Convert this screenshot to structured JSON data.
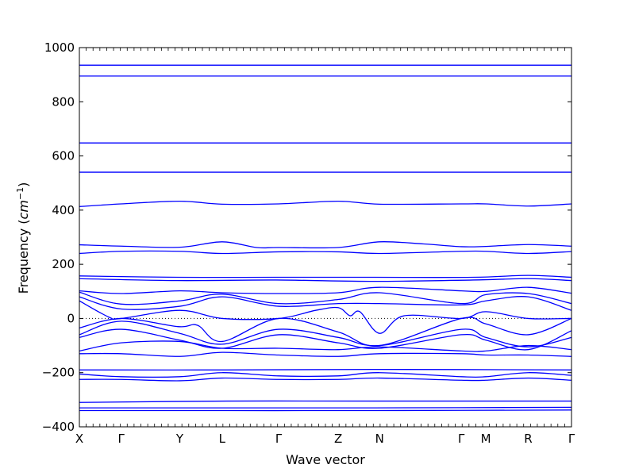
{
  "chart_data": {
    "type": "line",
    "xlabel": "Wave vector",
    "ylabel": "Frequency ",
    "ylabel_unit_base": "cm",
    "ylabel_unit_exp": "−1",
    "ylim": [
      -400,
      1000
    ],
    "yticks": [
      -400,
      -200,
      0,
      200,
      400,
      600,
      800,
      1000
    ],
    "ytick_labels": [
      "−400",
      "−200",
      "0",
      "200",
      "400",
      "600",
      "800",
      "1000"
    ],
    "xlim": [
      0,
      1
    ],
    "path_points": [
      {
        "label": "X",
        "x": 0.0
      },
      {
        "label": "Γ",
        "x": 0.085
      },
      {
        "label": "Y",
        "x": 0.204
      },
      {
        "label": "L",
        "x": 0.29
      },
      {
        "label": "Γ",
        "x": 0.405
      },
      {
        "label": "Z",
        "x": 0.526
      },
      {
        "label": "N",
        "x": 0.61
      },
      {
        "label": "Γ",
        "x": 0.776
      },
      {
        "label": "M",
        "x": 0.826
      },
      {
        "label": "R",
        "x": 0.912
      },
      {
        "label": "Γ",
        "x": 1.0
      }
    ],
    "zero_line": {
      "y": 0,
      "style": "dotted"
    },
    "line_color": "#0000ff",
    "series": [
      {
        "x": [
          0,
          0.5,
          1
        ],
        "y": [
          935,
          935,
          935
        ]
      },
      {
        "x": [
          0,
          0.5,
          1
        ],
        "y": [
          895,
          895,
          895
        ]
      },
      {
        "x": [
          0,
          0.3,
          0.6,
          1
        ],
        "y": [
          648,
          648,
          648,
          648
        ]
      },
      {
        "x": [
          0,
          0.3,
          0.6,
          1
        ],
        "y": [
          540,
          540,
          540,
          540
        ]
      },
      {
        "x": [
          0,
          0.085,
          0.204,
          0.29,
          0.405,
          0.526,
          0.61,
          0.776,
          0.826,
          0.912,
          1.0
        ],
        "y": [
          413,
          423,
          433,
          422,
          423,
          433,
          422,
          423,
          423,
          415,
          423
        ]
      },
      {
        "x": [
          0,
          0.085,
          0.204,
          0.29,
          0.36,
          0.405,
          0.526,
          0.61,
          0.7,
          0.776,
          0.826,
          0.912,
          1.0
        ],
        "y": [
          272,
          267,
          263,
          283,
          262,
          262,
          262,
          283,
          275,
          265,
          266,
          273,
          267
        ]
      },
      {
        "x": [
          0,
          0.085,
          0.204,
          0.29,
          0.405,
          0.526,
          0.61,
          0.776,
          0.826,
          0.912,
          1.0
        ],
        "y": [
          240,
          248,
          248,
          240,
          246,
          246,
          240,
          248,
          248,
          240,
          247
        ]
      },
      {
        "x": [
          0,
          0.2,
          0.4,
          0.6,
          0.8,
          0.912,
          1.0
        ],
        "y": [
          157,
          152,
          152,
          152,
          152,
          159,
          152
        ]
      },
      {
        "x": [
          0,
          0.2,
          0.4,
          0.6,
          0.8,
          0.912,
          1.0
        ],
        "y": [
          147,
          140,
          142,
          137,
          142,
          147,
          140
        ]
      },
      {
        "x": [
          0,
          0.085,
          0.204,
          0.29,
          0.405,
          0.526,
          0.61,
          0.776,
          0.826,
          0.912,
          1.0
        ],
        "y": [
          102,
          92,
          102,
          95,
          92,
          95,
          115,
          102,
          100,
          115,
          93
        ]
      },
      {
        "x": [
          0,
          0.085,
          0.204,
          0.29,
          0.405,
          0.526,
          0.61,
          0.776,
          0.826,
          0.912,
          1.0
        ],
        "y": [
          97,
          53,
          65,
          90,
          55,
          70,
          95,
          55,
          88,
          92,
          55
        ]
      },
      {
        "x": [
          0,
          0.085,
          0.204,
          0.29,
          0.405,
          0.526,
          0.61,
          0.776,
          0.826,
          0.912,
          1.0
        ],
        "y": [
          80,
          35,
          45,
          80,
          45,
          55,
          55,
          50,
          65,
          80,
          30
        ]
      },
      {
        "x": [
          0,
          0.06,
          0.085,
          0.204,
          0.29,
          0.405,
          0.48,
          0.526,
          0.55,
          0.57,
          0.61,
          0.66,
          0.776,
          0.826,
          0.912,
          1.0
        ],
        "y": [
          65,
          5,
          0,
          30,
          0,
          0,
          30,
          40,
          10,
          25,
          -55,
          10,
          0,
          25,
          0,
          0
        ]
      },
      {
        "x": [
          0,
          0.085,
          0.2,
          0.24,
          0.29,
          0.405,
          0.526,
          0.61,
          0.776,
          0.826,
          0.912,
          1.0
        ],
        "y": [
          -35,
          0,
          -30,
          -25,
          -85,
          0,
          -50,
          -100,
          0,
          -20,
          -60,
          0
        ]
      },
      {
        "x": [
          0,
          0.085,
          0.204,
          0.29,
          0.405,
          0.526,
          0.61,
          0.776,
          0.826,
          0.912,
          1.0
        ],
        "y": [
          -60,
          -10,
          -55,
          -95,
          -40,
          -70,
          -100,
          -40,
          -70,
          -105,
          -70
        ]
      },
      {
        "x": [
          0,
          0.085,
          0.204,
          0.29,
          0.405,
          0.526,
          0.61,
          0.776,
          0.826,
          0.912,
          1.0
        ],
        "y": [
          -70,
          -40,
          -80,
          -110,
          -60,
          -90,
          -110,
          -60,
          -80,
          -115,
          -45
        ]
      },
      {
        "x": [
          0,
          0.085,
          0.204,
          0.29,
          0.405,
          0.526,
          0.61,
          0.776,
          0.826,
          0.912,
          1.0
        ],
        "y": [
          -120,
          -90,
          -85,
          -110,
          -110,
          -115,
          -105,
          -120,
          -120,
          -100,
          -115
        ]
      },
      {
        "x": [
          0,
          0.085,
          0.204,
          0.29,
          0.405,
          0.526,
          0.61,
          0.776,
          0.826,
          0.912,
          1.0
        ],
        "y": [
          -130,
          -130,
          -140,
          -125,
          -135,
          -140,
          -130,
          -130,
          -135,
          -135,
          -140
        ]
      },
      {
        "x": [
          0,
          0.3,
          0.6,
          1
        ],
        "y": [
          -190,
          -190,
          -188,
          -190
        ]
      },
      {
        "x": [
          0,
          0.085,
          0.204,
          0.29,
          0.405,
          0.526,
          0.61,
          0.776,
          0.826,
          0.912,
          1.0
        ],
        "y": [
          -205,
          -215,
          -215,
          -200,
          -212,
          -212,
          -200,
          -215,
          -215,
          -200,
          -210
        ]
      },
      {
        "x": [
          0,
          0.085,
          0.204,
          0.29,
          0.405,
          0.526,
          0.61,
          0.776,
          0.826,
          0.912,
          1.0
        ],
        "y": [
          -225,
          -225,
          -230,
          -220,
          -225,
          -225,
          -220,
          -228,
          -228,
          -220,
          -228
        ]
      },
      {
        "x": [
          0,
          0.3,
          0.6,
          1
        ],
        "y": [
          -310,
          -305,
          -305,
          -305
        ]
      },
      {
        "x": [
          0,
          0.3,
          0.6,
          1
        ],
        "y": [
          -330,
          -330,
          -330,
          -328
        ]
      },
      {
        "x": [
          0,
          0.3,
          0.6,
          1
        ],
        "y": [
          -340,
          -340,
          -340,
          -338
        ]
      }
    ]
  }
}
